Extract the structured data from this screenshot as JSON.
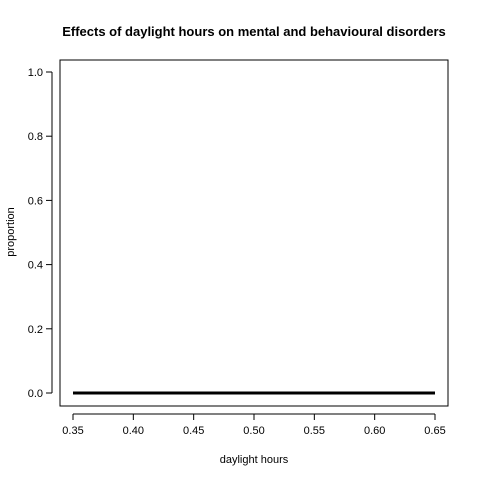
{
  "chart_data": {
    "type": "line",
    "title": "Effects of daylight hours on mental and behavioural disorders",
    "xlabel": "daylight hours",
    "ylabel": "proportion",
    "xlim": [
      0.35,
      0.65
    ],
    "ylim": [
      0.0,
      1.0
    ],
    "x_ticks": [
      "0.35",
      "0.40",
      "0.45",
      "0.50",
      "0.55",
      "0.60",
      "0.65"
    ],
    "y_ticks": [
      "0.0",
      "0.2",
      "0.4",
      "0.6",
      "0.8",
      "1.0"
    ],
    "series": [
      {
        "x": [
          0.35,
          0.65
        ],
        "y": [
          0.0,
          0.0
        ],
        "color": "#000000"
      }
    ],
    "grid": false,
    "legend": false
  }
}
